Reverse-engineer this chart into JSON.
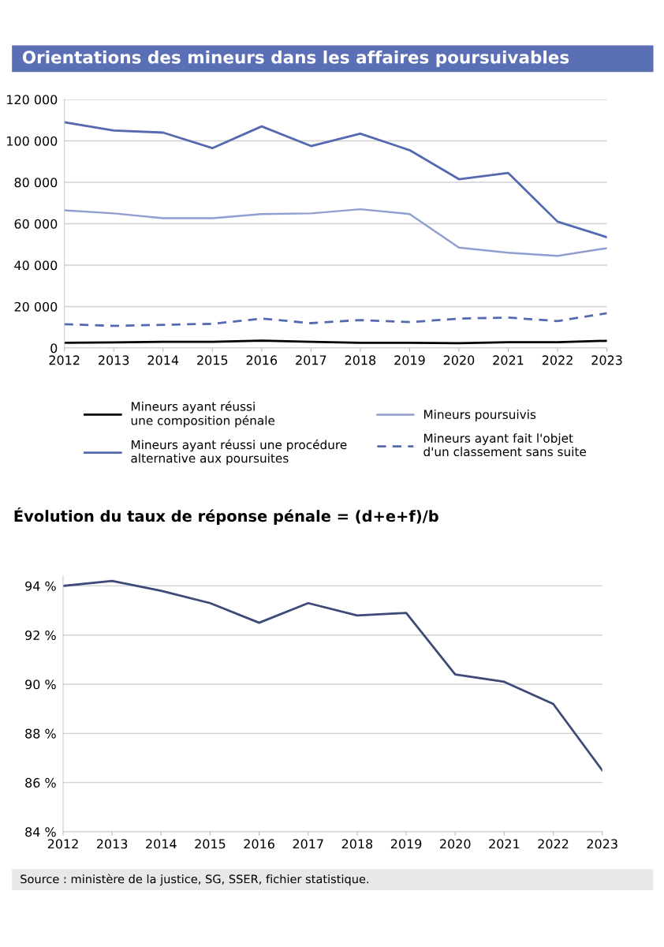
{
  "chart_data": [
    {
      "type": "line",
      "title": "Orientations des mineurs dans les affaires poursuivables",
      "x": [
        2012,
        2013,
        2014,
        2015,
        2016,
        2017,
        2018,
        2019,
        2020,
        2021,
        2022,
        2023
      ],
      "series": [
        {
          "name": "Mineurs ayant réussi\nune composition pénale",
          "color": "#000000",
          "line_style": "solid",
          "values": [
            2500,
            2700,
            3000,
            3000,
            3600,
            3000,
            2500,
            2500,
            2300,
            2800,
            2800,
            3500
          ]
        },
        {
          "name": "Mineurs ayant réussi une procédure\nalternative aux poursuites",
          "color": "#5469b0",
          "line_style": "solid",
          "values": [
            109000,
            105000,
            104000,
            96500,
            107000,
            97500,
            103500,
            95500,
            81500,
            84500,
            61000,
            53500
          ]
        },
        {
          "name": "Mineurs poursuivis",
          "color": "#8f9fd0",
          "line_style": "solid",
          "values": [
            66500,
            65000,
            62700,
            62700,
            64700,
            65000,
            67000,
            64700,
            48500,
            46000,
            44500,
            48200
          ]
        },
        {
          "name": "Mineurs ayant fait l'objet\nd'un classement sans suite",
          "color": "#5469b0",
          "line_style": "dashed",
          "values": [
            11500,
            10700,
            11200,
            11700,
            14200,
            12000,
            13500,
            12500,
            14200,
            14700,
            13000,
            16800
          ]
        }
      ],
      "xlim": [
        2012,
        2023
      ],
      "xticks": [
        2012,
        2013,
        2014,
        2015,
        2016,
        2017,
        2018,
        2019,
        2020,
        2021,
        2022,
        2023
      ],
      "ylim": [
        0,
        120000
      ],
      "yticks": [
        0,
        {
          "value": 20000,
          "label": "20 000"
        },
        {
          "value": 40000,
          "label": "40 000"
        },
        {
          "value": 60000,
          "label": "60 000"
        },
        {
          "value": 80000,
          "label": "80 000"
        },
        {
          "value": 100000,
          "label": "100 000"
        },
        {
          "value": 120000,
          "label": "120 000"
        }
      ],
      "grid": "y",
      "legend": "bottom"
    },
    {
      "type": "line",
      "title": "Évolution du taux de réponse pénale = (d+e+f)/b",
      "x": [
        2012,
        2013,
        2014,
        2015,
        2016,
        2017,
        2018,
        2019,
        2020,
        2021,
        2022,
        2023
      ],
      "series": [
        {
          "color": "#3d4a78",
          "line_style": "solid",
          "values": [
            94.0,
            94.2,
            93.8,
            93.3,
            92.5,
            93.3,
            92.8,
            92.9,
            90.4,
            90.1,
            89.2,
            86.5
          ]
        }
      ],
      "xlim": [
        2012,
        2023
      ],
      "xticks": [
        2012,
        2013,
        2014,
        2015,
        2016,
        2017,
        2018,
        2019,
        2020,
        2021,
        2022,
        2023
      ],
      "ylim": [
        84,
        94.4
      ],
      "yticks": [
        {
          "value": 84,
          "label": "84 %"
        },
        {
          "value": 86,
          "label": "86 %"
        },
        {
          "value": 88,
          "label": "88 %"
        },
        {
          "value": 90,
          "label": "90 %"
        },
        {
          "value": 92,
          "label": "92 %"
        },
        {
          "value": 94,
          "label": "94 %"
        }
      ],
      "grid": "y",
      "annotations": [
        "Source : ministère de la justice, SG, SSER, fichier statistique."
      ]
    }
  ]
}
